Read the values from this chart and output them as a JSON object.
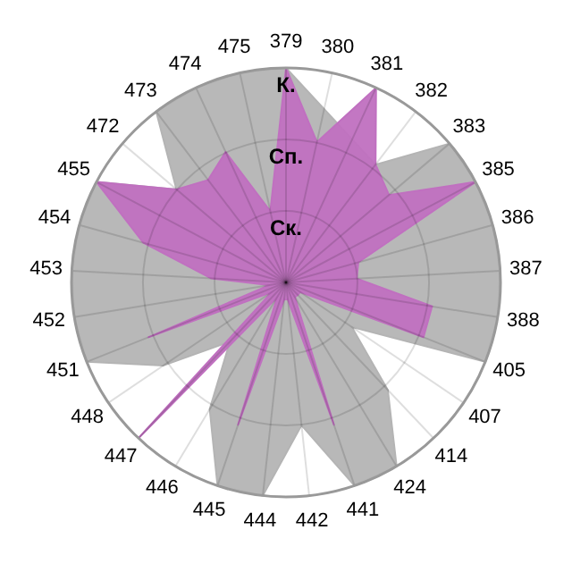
{
  "chart_data": {
    "type": "radar",
    "ylim": [
      0,
      1
    ],
    "grid": true,
    "categories": [
      "379",
      "380",
      "381",
      "382",
      "383",
      "385",
      "386",
      "387",
      "388",
      "405",
      "407",
      "414",
      "424",
      "441",
      "442",
      "444",
      "445",
      "446",
      "447",
      "448",
      "451",
      "452",
      "453",
      "454",
      "455",
      "472",
      "473",
      "474",
      "475"
    ],
    "yticks": [
      {
        "value": 0.333,
        "label": "Ск."
      },
      {
        "value": 0.667,
        "label": "Сп."
      },
      {
        "value": 1,
        "label": "К."
      }
    ],
    "series": [
      {
        "color": "#b4b4b4",
        "values": [
          1,
          null,
          null,
          0.69,
          1,
          1,
          1,
          1,
          1,
          1,
          0.37,
          0.69,
          1,
          1,
          0.67,
          1,
          1,
          0.69,
          0.38,
          0.69,
          1,
          1,
          1,
          1,
          1,
          0.67,
          1,
          1,
          1
        ]
      },
      {
        "color": "#c070c0",
        "values": [
          1,
          0.67,
          1,
          0.69,
          0.63,
          1,
          0.35,
          0.33,
          0.69,
          0.69,
          0.08,
          0.08,
          0.08,
          0.7,
          0.08,
          0.08,
          0.7,
          0.08,
          1,
          0.08,
          0.69,
          0.08,
          0.35,
          0.69,
          1,
          0.67,
          0.6,
          0.67,
          0.34
        ]
      }
    ]
  }
}
